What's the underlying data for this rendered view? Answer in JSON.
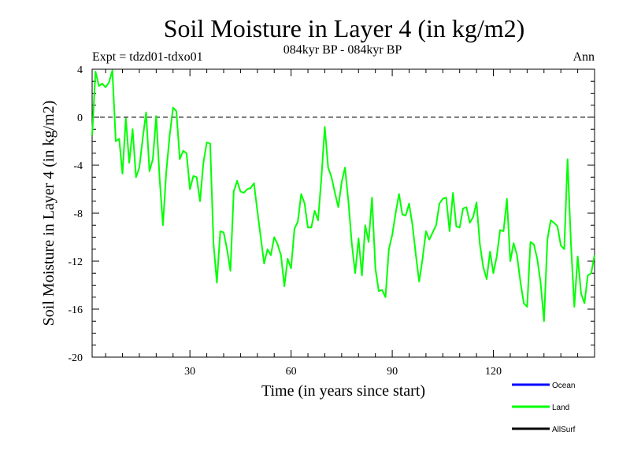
{
  "chart_data": {
    "type": "line",
    "title": "Soil Moisture in Layer 4 (in kg/m2)",
    "subtitle": "084kyr BP - 084kyr BP",
    "left_note": "Expt = tdzd01-tdxo01",
    "right_note": "Ann",
    "xlabel": "Time (in years since start)",
    "ylabel": "Soil Moisture in Layer 4 (in kg/m2)",
    "xlim": [
      1,
      150
    ],
    "ylim": [
      -20,
      4
    ],
    "x_ticks": [
      30,
      60,
      90,
      120
    ],
    "x_tick_labels": [
      "30",
      "60",
      "90",
      "120"
    ],
    "y_ticks": [
      4,
      0,
      -4,
      -8,
      -12,
      -16,
      -20
    ],
    "y_tick_labels": [
      "4",
      "0",
      "-4",
      "-8",
      "-12",
      "-16",
      "-20"
    ],
    "reference_line": 0,
    "legend": {
      "placement": "bottom-right",
      "entries": [
        {
          "label": "Ocean",
          "color": "#0000ff"
        },
        {
          "label": "Land",
          "color": "#00ff00"
        },
        {
          "label": "AllSurf",
          "color": "#000000"
        }
      ]
    },
    "series": [
      {
        "name": "Land",
        "color": "#00ff00",
        "x_start": 1,
        "x_step": 1,
        "values": [
          -1.5,
          3.8,
          2.6,
          2.8,
          2.5,
          2.9,
          3.9,
          -2.0,
          -1.8,
          -4.7,
          -0.1,
          -3.8,
          -1.0,
          -5.0,
          -4.2,
          -1.8,
          0.4,
          -4.5,
          -3.5,
          0.1,
          -5.0,
          -9.0,
          -4.5,
          -1.5,
          0.8,
          0.5,
          -3.5,
          -2.8,
          -3.0,
          -6.0,
          -4.9,
          -5.0,
          -7.0,
          -3.8,
          -2.1,
          -2.2,
          -10.5,
          -13.8,
          -9.5,
          -9.6,
          -11.0,
          -12.8,
          -6.2,
          -5.3,
          -6.2,
          -6.3,
          -6.0,
          -5.9,
          -5.5,
          -7.8,
          -10.0,
          -12.2,
          -11.0,
          -11.5,
          -10.0,
          -10.6,
          -11.5,
          -14.1,
          -11.8,
          -12.6,
          -9.3,
          -8.7,
          -6.4,
          -7.2,
          -9.2,
          -9.2,
          -7.8,
          -8.6,
          -5.0,
          -0.8,
          -4.2,
          -5.0,
          -6.3,
          -7.5,
          -5.4,
          -4.2,
          -7.0,
          -10.5,
          -13.0,
          -10.1,
          -13.2,
          -9.0,
          -10.4,
          -6.7,
          -12.6,
          -14.5,
          -14.4,
          -15.0,
          -11.0,
          -9.8,
          -8.0,
          -6.4,
          -8.1,
          -8.2,
          -7.2,
          -9.0,
          -11.5,
          -13.7,
          -11.8,
          -9.5,
          -10.2,
          -9.6,
          -9.0,
          -7.2,
          -6.8,
          -6.7,
          -9.5,
          -6.3,
          -9.1,
          -9.2,
          -7.6,
          -7.5,
          -8.8,
          -8.3,
          -7.1,
          -10.6,
          -12.5,
          -13.5,
          -11.2,
          -13.0,
          -11.6,
          -9.4,
          -9.5,
          -6.8,
          -12.0,
          -10.5,
          -11.5,
          -13.7,
          -15.5,
          -15.8,
          -10.4,
          -10.6,
          -11.8,
          -13.8,
          -17.0,
          -10.2,
          -8.6,
          -8.8,
          -9.1,
          -10.7,
          -11.0,
          -3.5,
          -10.5,
          -15.8,
          -11.6,
          -14.7,
          -15.5,
          -13.2,
          -13.0,
          -11.5
        ]
      }
    ]
  }
}
